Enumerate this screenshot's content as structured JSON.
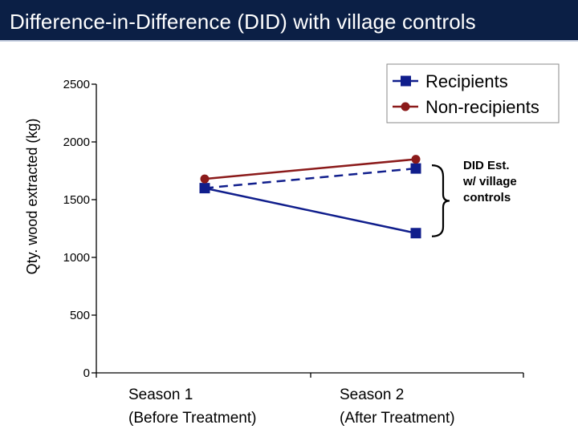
{
  "slide": {
    "title": "Difference-in-Difference (DID) with village controls"
  },
  "colors": {
    "title_bar": "#0b1f45",
    "recipients": "#101e8c",
    "non_recipients": "#8b1a1a",
    "axis": "#000000"
  },
  "chart_data": {
    "type": "line",
    "title": "",
    "xlabel": "",
    "ylabel": "Qty. wood extracted (kg)",
    "ylim": [
      0,
      2500
    ],
    "yticks": [
      0,
      500,
      1000,
      1500,
      2000,
      2500
    ],
    "categories": [
      [
        "Season 1",
        "(Before Treatment)"
      ],
      [
        "Season 2",
        "(After Treatment)"
      ]
    ],
    "series": [
      {
        "name": "Recipients",
        "values": [
          1600,
          1210
        ],
        "color": "#101e8c",
        "marker": "square"
      },
      {
        "name": "Non-recipients",
        "values": [
          1680,
          1850
        ],
        "color": "#8b1a1a",
        "marker": "circle"
      }
    ],
    "counterfactual": {
      "values": [
        1600,
        1770
      ],
      "style": "dashed",
      "color": "#101e8c",
      "marker": "square"
    },
    "legend": {
      "placement": "top-right",
      "entries": [
        "Recipients",
        "Non-recipients"
      ]
    },
    "annotation": {
      "lines": [
        "DID Est.",
        "w/ village",
        "controls"
      ],
      "brace": "right"
    },
    "grid": false
  }
}
